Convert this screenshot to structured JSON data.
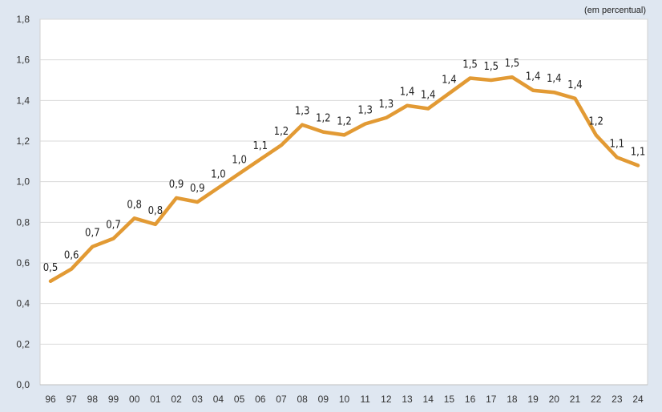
{
  "chart_data": {
    "type": "line",
    "title": "",
    "unit_note": "(em percentual)",
    "xlabel": "",
    "ylabel": "",
    "ylim": [
      0,
      1.8
    ],
    "y_ticks": [
      "0,0",
      "0,2",
      "0,4",
      "0,6",
      "0,8",
      "1,0",
      "1,2",
      "1,4",
      "1,6",
      "1,8"
    ],
    "y_tick_values": [
      0,
      0.2,
      0.4,
      0.6,
      0.8,
      1.0,
      1.2,
      1.4,
      1.6,
      1.8
    ],
    "grid": true,
    "legend": "none",
    "categories": [
      "96",
      "97",
      "98",
      "99",
      "00",
      "01",
      "02",
      "03",
      "04",
      "05",
      "06",
      "07",
      "08",
      "09",
      "10",
      "11",
      "12",
      "13",
      "14",
      "15",
      "16",
      "17",
      "18",
      "19",
      "20",
      "21",
      "22",
      "23",
      "24"
    ],
    "series": [
      {
        "color": "#e29a34",
        "values": [
          0.51,
          0.57,
          0.68,
          0.72,
          0.82,
          0.79,
          0.92,
          0.9,
          0.97,
          1.04,
          1.11,
          1.18,
          1.28,
          1.245,
          1.23,
          1.285,
          1.315,
          1.375,
          1.36,
          1.435,
          1.51,
          1.5,
          1.515,
          1.45,
          1.44,
          1.41,
          1.23,
          1.12,
          1.08
        ],
        "labels": [
          "0,5",
          "0,6",
          "0,7",
          "0,7",
          "0,8",
          "0,8",
          "0,9",
          "0,9",
          "1,0",
          "1,0",
          "1,1",
          "1,2",
          "1,3",
          "1,2",
          "1,2",
          "1,3",
          "1,3",
          "1,4",
          "1,4",
          "1,4",
          "1,5",
          "1,5",
          "1,5",
          "1,4",
          "1,4",
          "1,4",
          "1,2",
          "1,1",
          "1,1"
        ]
      }
    ]
  }
}
